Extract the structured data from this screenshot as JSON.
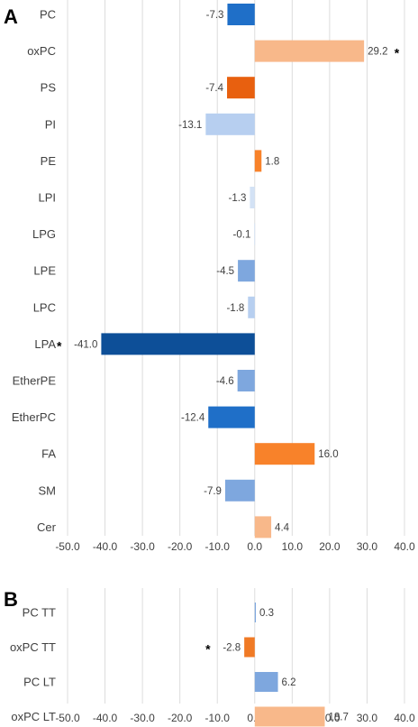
{
  "chart_data": [
    {
      "panel_label": "A",
      "type": "bar",
      "orientation": "horizontal",
      "categories": [
        "PC",
        "oxPC",
        "PS",
        "PI",
        "PE",
        "LPI",
        "LPG",
        "LPE",
        "LPC",
        "LPA",
        "EtherPE",
        "EtherPC",
        "FA",
        "SM",
        "Cer"
      ],
      "values": [
        -7.3,
        29.2,
        -7.4,
        -13.1,
        1.8,
        -1.3,
        -0.1,
        -4.5,
        -1.8,
        -41.0,
        -4.6,
        -12.4,
        16.0,
        -7.9,
        4.4
      ],
      "value_labels": [
        "-7.3",
        "29.2",
        "-7.4",
        "-13.1",
        "1.8",
        "-1.3",
        "-0.1",
        "-4.5",
        "-1.8",
        "-41.0",
        "-4.6",
        "-12.4",
        "16.0",
        "-7.9",
        "4.4"
      ],
      "colors": [
        "#1f6fc8",
        "#f8b88a",
        "#e8600f",
        "#b7cff0",
        "#f8822a",
        "#d3e2f5",
        "#d3e2f5",
        "#7ea7de",
        "#b7cff0",
        "#0d4f98",
        "#7ea7de",
        "#1f6fc8",
        "#f8822a",
        "#7ea7de",
        "#f8b88a"
      ],
      "significant": [
        false,
        true,
        false,
        false,
        false,
        false,
        false,
        false,
        false,
        true,
        false,
        false,
        false,
        false,
        false
      ],
      "significance_marker": "*",
      "xlim": [
        -50,
        40
      ],
      "x_ticks": [
        "-50.0",
        "-40.0",
        "-30.0",
        "-20.0",
        "-10.0",
        "0.0",
        "10.0",
        "20.0",
        "30.0",
        "40.0"
      ],
      "grid": "vertical"
    },
    {
      "panel_label": "B",
      "type": "bar",
      "orientation": "horizontal",
      "categories": [
        "PC TT",
        "oxPC TT",
        "PC LT",
        "oxPC LT"
      ],
      "values": [
        0.3,
        -2.8,
        6.2,
        18.7
      ],
      "value_labels": [
        "0.3",
        "-2.8",
        "6.2",
        "18.7"
      ],
      "colors": [
        "#7ea7de",
        "#f07a25",
        "#7ea7de",
        "#f8b88a"
      ],
      "significant": [
        false,
        true,
        false,
        false
      ],
      "significance_marker": "*",
      "xlim": [
        -50,
        40
      ],
      "x_ticks": [
        "-50.0",
        "-40.0",
        "-30.0",
        "-20.0",
        "-10.0",
        "0.0",
        "10.0",
        "20.0",
        "30.0",
        "40.0"
      ],
      "grid": "vertical"
    }
  ]
}
